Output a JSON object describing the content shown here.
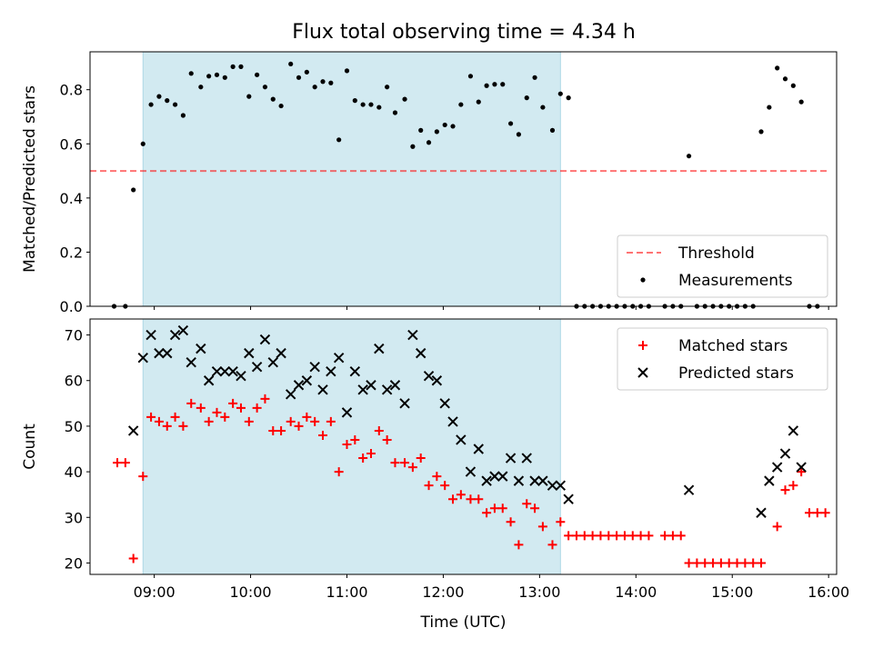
{
  "title": "Flux total observing time = 4.34 h",
  "colors": {
    "shade": "#add8e6",
    "threshold": "#ff0000",
    "measurements": "#000000",
    "matched": "#ff0000",
    "predicted": "#000000"
  },
  "chart_data": [
    {
      "type": "scatter",
      "panel": "top",
      "xlabel": "",
      "ylabel": "Matched/Predicted stars",
      "xlim": [
        "08:20",
        "16:05"
      ],
      "ylim": [
        0,
        0.94
      ],
      "yticks": [
        0.0,
        0.2,
        0.4,
        0.6,
        0.8
      ],
      "yticklabels": [
        "0.0",
        "0.2",
        "0.4",
        "0.6",
        "0.8"
      ],
      "grid": false,
      "legend_position": "lower right",
      "shaded_span": [
        "08:53",
        "13:13"
      ],
      "threshold": {
        "name": "Threshold",
        "value": 0.5,
        "x": [
          "08:20",
          "16:00"
        ],
        "style": "dashed"
      },
      "series": [
        {
          "name": "Measurements",
          "marker": "dot",
          "points": [
            [
              "08:35",
              0.0
            ],
            [
              "08:42",
              0.0
            ],
            [
              "08:47",
              0.43
            ],
            [
              "08:53",
              0.6
            ],
            [
              "08:58",
              0.745
            ],
            [
              "09:03",
              0.775
            ],
            [
              "09:08",
              0.76
            ],
            [
              "09:13",
              0.745
            ],
            [
              "09:18",
              0.705
            ],
            [
              "09:23",
              0.86
            ],
            [
              "09:29",
              0.81
            ],
            [
              "09:34",
              0.85
            ],
            [
              "09:39",
              0.855
            ],
            [
              "09:44",
              0.845
            ],
            [
              "09:49",
              0.885
            ],
            [
              "09:54",
              0.885
            ],
            [
              "09:59",
              0.775
            ],
            [
              "10:04",
              0.855
            ],
            [
              "10:09",
              0.81
            ],
            [
              "10:14",
              0.765
            ],
            [
              "10:19",
              0.74
            ],
            [
              "10:25",
              0.895
            ],
            [
              "10:30",
              0.845
            ],
            [
              "10:35",
              0.865
            ],
            [
              "10:40",
              0.81
            ],
            [
              "10:45",
              0.83
            ],
            [
              "10:50",
              0.825
            ],
            [
              "10:55",
              0.615
            ],
            [
              "11:00",
              0.87
            ],
            [
              "11:05",
              0.76
            ],
            [
              "11:10",
              0.745
            ],
            [
              "11:15",
              0.745
            ],
            [
              "11:20",
              0.735
            ],
            [
              "11:25",
              0.81
            ],
            [
              "11:30",
              0.715
            ],
            [
              "11:36",
              0.765
            ],
            [
              "11:41",
              0.59
            ],
            [
              "11:46",
              0.65
            ],
            [
              "11:51",
              0.605
            ],
            [
              "11:56",
              0.645
            ],
            [
              "12:01",
              0.67
            ],
            [
              "12:06",
              0.665
            ],
            [
              "12:11",
              0.745
            ],
            [
              "12:17",
              0.85
            ],
            [
              "12:22",
              0.755
            ],
            [
              "12:27",
              0.815
            ],
            [
              "12:32",
              0.82
            ],
            [
              "12:37",
              0.82
            ],
            [
              "12:42",
              0.675
            ],
            [
              "12:47",
              0.635
            ],
            [
              "12:52",
              0.77
            ],
            [
              "12:57",
              0.845
            ],
            [
              "13:02",
              0.735
            ],
            [
              "13:08",
              0.65
            ],
            [
              "13:13",
              0.785
            ],
            [
              "13:18",
              0.77
            ],
            [
              "13:23",
              0.0
            ],
            [
              "13:28",
              0.0
            ],
            [
              "13:33",
              0.0
            ],
            [
              "13:38",
              0.0
            ],
            [
              "13:43",
              0.0
            ],
            [
              "13:48",
              0.0
            ],
            [
              "13:53",
              0.0
            ],
            [
              "13:58",
              0.0
            ],
            [
              "14:03",
              0.0
            ],
            [
              "14:08",
              0.0
            ],
            [
              "14:18",
              0.0
            ],
            [
              "14:23",
              0.0
            ],
            [
              "14:28",
              0.0
            ],
            [
              "14:33",
              0.555
            ],
            [
              "14:38",
              0.0
            ],
            [
              "14:43",
              0.0
            ],
            [
              "14:48",
              0.0
            ],
            [
              "14:53",
              0.0
            ],
            [
              "14:58",
              0.0
            ],
            [
              "15:03",
              0.0
            ],
            [
              "15:08",
              0.0
            ],
            [
              "15:13",
              0.0
            ],
            [
              "15:18",
              0.645
            ],
            [
              "15:23",
              0.735
            ],
            [
              "15:28",
              0.88
            ],
            [
              "15:33",
              0.84
            ],
            [
              "15:38",
              0.815
            ],
            [
              "15:43",
              0.755
            ],
            [
              "15:48",
              0.0
            ],
            [
              "15:53",
              0.0
            ]
          ]
        }
      ]
    },
    {
      "type": "scatter",
      "panel": "bottom",
      "xlabel": "Time (UTC)",
      "ylabel": "Count",
      "xlim": [
        "08:20",
        "16:05"
      ],
      "ylim": [
        17.5,
        73.5
      ],
      "yticks": [
        20,
        30,
        40,
        50,
        60,
        70
      ],
      "yticklabels": [
        "20",
        "30",
        "40",
        "50",
        "60",
        "70"
      ],
      "xticks": [
        "09:00",
        "10:00",
        "11:00",
        "12:00",
        "13:00",
        "14:00",
        "15:00",
        "16:00"
      ],
      "xticklabels": [
        "09:00",
        "10:00",
        "11:00",
        "12:00",
        "13:00",
        "14:00",
        "15:00",
        "16:00"
      ],
      "grid": false,
      "legend_position": "upper right",
      "shaded_span": [
        "08:53",
        "13:13"
      ],
      "series": [
        {
          "name": "Matched stars",
          "marker": "plus",
          "points": [
            [
              "08:37",
              42
            ],
            [
              "08:42",
              42
            ],
            [
              "08:47",
              21
            ],
            [
              "08:53",
              39
            ],
            [
              "08:58",
              52
            ],
            [
              "09:03",
              51
            ],
            [
              "09:08",
              50
            ],
            [
              "09:13",
              52
            ],
            [
              "09:18",
              50
            ],
            [
              "09:23",
              55
            ],
            [
              "09:29",
              54
            ],
            [
              "09:34",
              51
            ],
            [
              "09:39",
              53
            ],
            [
              "09:44",
              52
            ],
            [
              "09:49",
              55
            ],
            [
              "09:54",
              54
            ],
            [
              "09:59",
              51
            ],
            [
              "10:04",
              54
            ],
            [
              "10:09",
              56
            ],
            [
              "10:14",
              49
            ],
            [
              "10:19",
              49
            ],
            [
              "10:25",
              51
            ],
            [
              "10:30",
              50
            ],
            [
              "10:35",
              52
            ],
            [
              "10:40",
              51
            ],
            [
              "10:45",
              48
            ],
            [
              "10:50",
              51
            ],
            [
              "10:55",
              40
            ],
            [
              "11:00",
              46
            ],
            [
              "11:05",
              47
            ],
            [
              "11:10",
              43
            ],
            [
              "11:15",
              44
            ],
            [
              "11:20",
              49
            ],
            [
              "11:25",
              47
            ],
            [
              "11:30",
              42
            ],
            [
              "11:36",
              42
            ],
            [
              "11:41",
              41
            ],
            [
              "11:46",
              43
            ],
            [
              "11:51",
              37
            ],
            [
              "11:56",
              39
            ],
            [
              "12:01",
              37
            ],
            [
              "12:06",
              34
            ],
            [
              "12:11",
              35
            ],
            [
              "12:17",
              34
            ],
            [
              "12:22",
              34
            ],
            [
              "12:27",
              31
            ],
            [
              "12:32",
              32
            ],
            [
              "12:37",
              32
            ],
            [
              "12:42",
              29
            ],
            [
              "12:47",
              24
            ],
            [
              "12:52",
              33
            ],
            [
              "12:57",
              32
            ],
            [
              "13:02",
              28
            ],
            [
              "13:08",
              24
            ],
            [
              "13:13",
              29
            ],
            [
              "13:18",
              26
            ],
            [
              "13:23",
              26
            ],
            [
              "13:28",
              26
            ],
            [
              "13:33",
              26
            ],
            [
              "13:38",
              26
            ],
            [
              "13:43",
              26
            ],
            [
              "13:48",
              26
            ],
            [
              "13:53",
              26
            ],
            [
              "13:58",
              26
            ],
            [
              "14:03",
              26
            ],
            [
              "14:08",
              26
            ],
            [
              "14:18",
              26
            ],
            [
              "14:23",
              26
            ],
            [
              "14:28",
              26
            ],
            [
              "14:33",
              20
            ],
            [
              "14:38",
              20
            ],
            [
              "14:43",
              20
            ],
            [
              "14:48",
              20
            ],
            [
              "14:53",
              20
            ],
            [
              "14:58",
              20
            ],
            [
              "15:03",
              20
            ],
            [
              "15:08",
              20
            ],
            [
              "15:13",
              20
            ],
            [
              "15:18",
              20
            ],
            [
              "15:28",
              28
            ],
            [
              "15:33",
              36
            ],
            [
              "15:38",
              37
            ],
            [
              "15:43",
              40
            ],
            [
              "15:48",
              31
            ],
            [
              "15:53",
              31
            ],
            [
              "15:58",
              31
            ]
          ]
        },
        {
          "name": "Predicted stars",
          "marker": "x",
          "points": [
            [
              "08:47",
              49
            ],
            [
              "08:53",
              65
            ],
            [
              "08:58",
              70
            ],
            [
              "09:03",
              66
            ],
            [
              "09:08",
              66
            ],
            [
              "09:13",
              70
            ],
            [
              "09:18",
              71
            ],
            [
              "09:23",
              64
            ],
            [
              "09:29",
              67
            ],
            [
              "09:34",
              60
            ],
            [
              "09:39",
              62
            ],
            [
              "09:44",
              62
            ],
            [
              "09:49",
              62
            ],
            [
              "09:54",
              61
            ],
            [
              "09:59",
              66
            ],
            [
              "10:04",
              63
            ],
            [
              "10:09",
              69
            ],
            [
              "10:14",
              64
            ],
            [
              "10:19",
              66
            ],
            [
              "10:25",
              57
            ],
            [
              "10:30",
              59
            ],
            [
              "10:35",
              60
            ],
            [
              "10:40",
              63
            ],
            [
              "10:45",
              58
            ],
            [
              "10:50",
              62
            ],
            [
              "10:55",
              65
            ],
            [
              "11:00",
              53
            ],
            [
              "11:05",
              62
            ],
            [
              "11:10",
              58
            ],
            [
              "11:15",
              59
            ],
            [
              "11:20",
              67
            ],
            [
              "11:25",
              58
            ],
            [
              "11:30",
              59
            ],
            [
              "11:36",
              55
            ],
            [
              "11:41",
              70
            ],
            [
              "11:46",
              66
            ],
            [
              "11:51",
              61
            ],
            [
              "11:56",
              60
            ],
            [
              "12:01",
              55
            ],
            [
              "12:06",
              51
            ],
            [
              "12:11",
              47
            ],
            [
              "12:17",
              40
            ],
            [
              "12:22",
              45
            ],
            [
              "12:27",
              38
            ],
            [
              "12:32",
              39
            ],
            [
              "12:37",
              39
            ],
            [
              "12:42",
              43
            ],
            [
              "12:47",
              38
            ],
            [
              "12:52",
              43
            ],
            [
              "12:57",
              38
            ],
            [
              "13:02",
              38
            ],
            [
              "13:08",
              37
            ],
            [
              "13:13",
              37
            ],
            [
              "13:18",
              34
            ],
            [
              "14:33",
              36
            ],
            [
              "15:18",
              31
            ],
            [
              "15:23",
              38
            ],
            [
              "15:28",
              41
            ],
            [
              "15:33",
              44
            ],
            [
              "15:38",
              49
            ],
            [
              "15:43",
              41
            ]
          ]
        }
      ]
    }
  ]
}
